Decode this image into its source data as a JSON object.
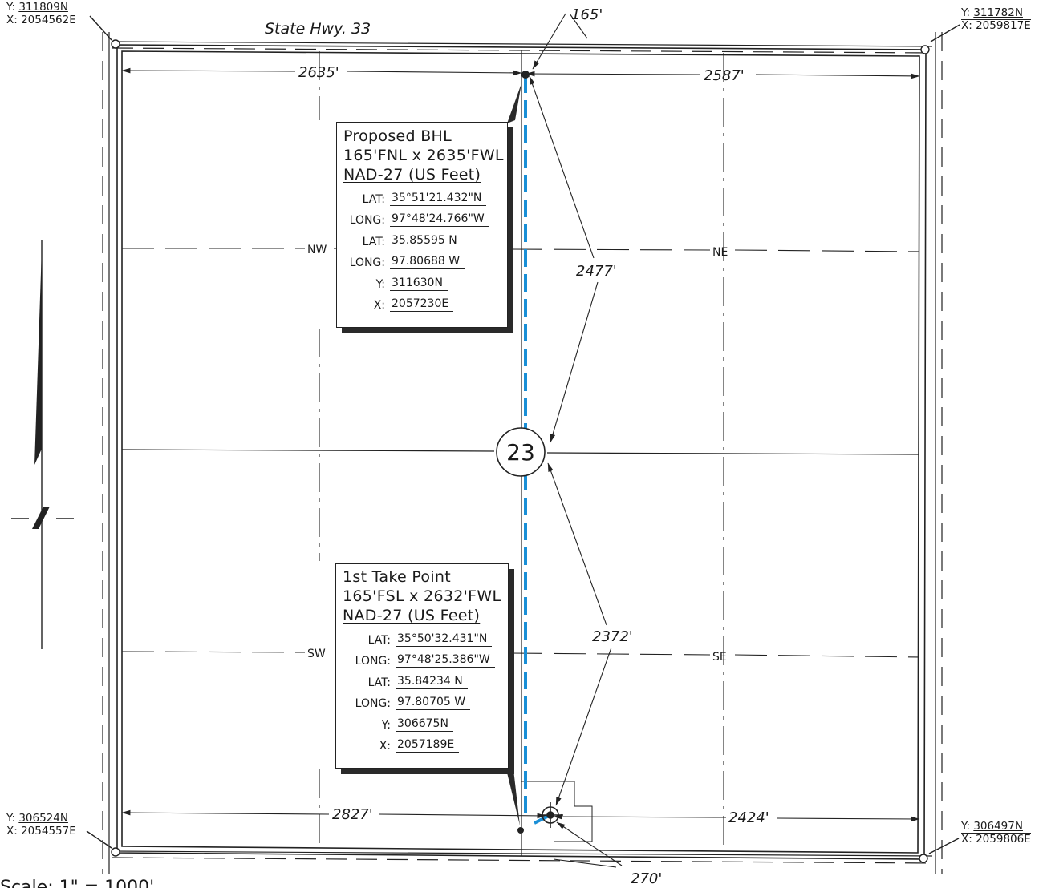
{
  "road_label": "State Hwy. 33",
  "section_number": "23",
  "quarter_labels": {
    "nw": "NW",
    "ne": "NE",
    "sw": "SW",
    "se": "SE"
  },
  "dimensions": {
    "top_offset": "165'",
    "top_left": "2635'",
    "top_right": "2587'",
    "diag_upper": "2477'",
    "diag_lower": "2372'",
    "bottom_left": "2827'",
    "bottom_right": "2424'",
    "bottom_offset": "270'"
  },
  "corners": {
    "nw": {
      "y_label": "Y:",
      "y": "311809N",
      "x_label": "X:",
      "x": "2054562E"
    },
    "ne": {
      "y_label": "Y:",
      "y": "311782N",
      "x_label": "X:",
      "x": "2059817E"
    },
    "sw": {
      "y_label": "Y:",
      "y": "306524N",
      "x_label": "X:",
      "x": "2054557E"
    },
    "se": {
      "y_label": "Y:",
      "y": "306497N",
      "x_label": "X:",
      "x": "2059806E"
    }
  },
  "bhl": {
    "title": "Proposed BHL",
    "location": "165'FNL x 2635'FWL",
    "datum": "NAD-27 (US Feet)",
    "rows": [
      {
        "key": "LAT:",
        "value": "35°51'21.432\"N"
      },
      {
        "key": "LONG:",
        "value": "97°48'24.766\"W"
      },
      {
        "key": "LAT:",
        "value": "35.85595 N"
      },
      {
        "key": "LONG:",
        "value": "97.80688 W"
      },
      {
        "key": "Y:",
        "value": "311630N"
      },
      {
        "key": "X:",
        "value": "2057230E"
      }
    ]
  },
  "take_point": {
    "title": "1st Take Point",
    "location": "165'FSL x 2632'FWL",
    "datum": "NAD-27 (US Feet)",
    "rows": [
      {
        "key": "LAT:",
        "value": "35°50'32.431\"N"
      },
      {
        "key": "LONG:",
        "value": "97°48'25.386\"W"
      },
      {
        "key": "LAT:",
        "value": "35.84234 N"
      },
      {
        "key": "LONG:",
        "value": "97.80705 W"
      },
      {
        "key": "Y:",
        "value": "306675N"
      },
      {
        "key": "X:",
        "value": "2057189E"
      }
    ]
  },
  "scale_note": "Scale: 1\" = 1000'",
  "colors": {
    "wellbore": "#1a8fd6",
    "linework": "#222222"
  }
}
